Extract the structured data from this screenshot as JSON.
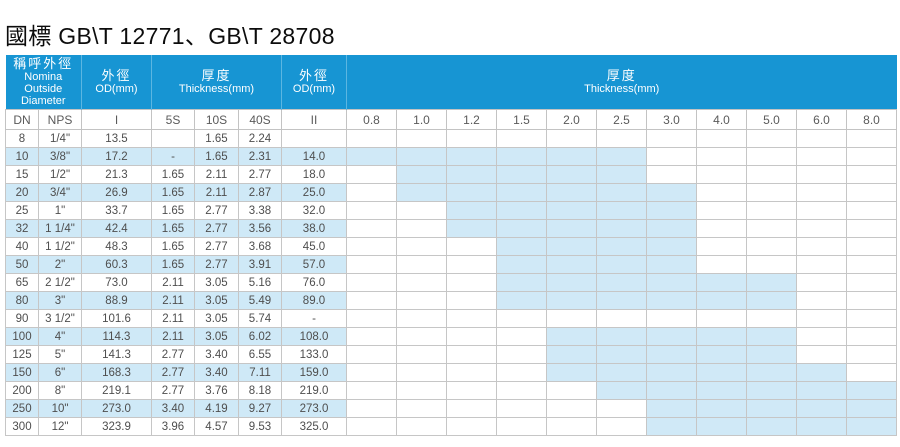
{
  "title": "國標 GB\\T 12771、GB\\T 28708",
  "colors": {
    "header_blue": "#1795d3",
    "header_divider": "#5cb6e1",
    "stripe_blue": "#cfe9f7",
    "available_blue": "#d0e9f7"
  },
  "table": {
    "groups": [
      {
        "zh": "稱呼外徑",
        "en": "Nomina",
        "en2": "Outside Diameter"
      },
      {
        "zh": "外徑",
        "en": "OD(mm)"
      },
      {
        "zh": "厚度",
        "en": "Thickness(mm)"
      },
      {
        "zh": "外徑",
        "en": "OD(mm)"
      },
      {
        "zh": "厚度",
        "en": "Thickness(mm)"
      }
    ],
    "subheaders": [
      "DN",
      "NPS",
      "I",
      "5S",
      "10S",
      "40S",
      "II"
    ],
    "thickness_columns": [
      "0.8",
      "1.0",
      "1.2",
      "1.5",
      "2.0",
      "2.5",
      "3.0",
      "4.0",
      "5.0",
      "6.0",
      "8.0"
    ],
    "rows": [
      {
        "dn": "8",
        "nps": "1/4\"",
        "od1": "13.5",
        "s5s": "",
        "s10s": "1.65",
        "s40s": "2.24",
        "od2": "",
        "available": null
      },
      {
        "dn": "10",
        "nps": "3/8\"",
        "od1": "17.2",
        "s5s": "-",
        "s10s": "1.65",
        "s40s": "2.31",
        "od2": "14.0",
        "available": [
          "0.8",
          "2.5"
        ]
      },
      {
        "dn": "15",
        "nps": "1/2\"",
        "od1": "21.3",
        "s5s": "1.65",
        "s10s": "2.11",
        "s40s": "2.77",
        "od2": "18.0",
        "available": [
          "1.0",
          "2.5"
        ]
      },
      {
        "dn": "20",
        "nps": "3/4\"",
        "od1": "26.9",
        "s5s": "1.65",
        "s10s": "2.11",
        "s40s": "2.87",
        "od2": "25.0",
        "available": [
          "1.0",
          "3.0"
        ]
      },
      {
        "dn": "25",
        "nps": "1\"",
        "od1": "33.7",
        "s5s": "1.65",
        "s10s": "2.77",
        "s40s": "3.38",
        "od2": "32.0",
        "available": [
          "1.2",
          "3.0"
        ]
      },
      {
        "dn": "32",
        "nps": "1 1/4\"",
        "od1": "42.4",
        "s5s": "1.65",
        "s10s": "2.77",
        "s40s": "3.56",
        "od2": "38.0",
        "available": [
          "1.2",
          "3.0"
        ]
      },
      {
        "dn": "40",
        "nps": "1 1/2\"",
        "od1": "48.3",
        "s5s": "1.65",
        "s10s": "2.77",
        "s40s": "3.68",
        "od2": "45.0",
        "available": [
          "1.5",
          "3.0"
        ]
      },
      {
        "dn": "50",
        "nps": "2\"",
        "od1": "60.3",
        "s5s": "1.65",
        "s10s": "2.77",
        "s40s": "3.91",
        "od2": "57.0",
        "available": [
          "1.5",
          "3.0"
        ]
      },
      {
        "dn": "65",
        "nps": "2 1/2\"",
        "od1": "73.0",
        "s5s": "2.11",
        "s10s": "3.05",
        "s40s": "5.16",
        "od2": "76.0",
        "available": [
          "1.5",
          "5.0"
        ]
      },
      {
        "dn": "80",
        "nps": "3\"",
        "od1": "88.9",
        "s5s": "2.11",
        "s10s": "3.05",
        "s40s": "5.49",
        "od2": "89.0",
        "available": [
          "1.5",
          "5.0"
        ]
      },
      {
        "dn": "90",
        "nps": "3 1/2\"",
        "od1": "101.6",
        "s5s": "2.11",
        "s10s": "3.05",
        "s40s": "5.74",
        "od2": "-",
        "available": null
      },
      {
        "dn": "100",
        "nps": "4\"",
        "od1": "114.3",
        "s5s": "2.11",
        "s10s": "3.05",
        "s40s": "6.02",
        "od2": "108.0",
        "available": [
          "2.0",
          "5.0"
        ]
      },
      {
        "dn": "125",
        "nps": "5\"",
        "od1": "141.3",
        "s5s": "2.77",
        "s10s": "3.40",
        "s40s": "6.55",
        "od2": "133.0",
        "available": [
          "2.0",
          "5.0"
        ]
      },
      {
        "dn": "150",
        "nps": "6\"",
        "od1": "168.3",
        "s5s": "2.77",
        "s10s": "3.40",
        "s40s": "7.11",
        "od2": "159.0",
        "available": [
          "2.0",
          "6.0"
        ]
      },
      {
        "dn": "200",
        "nps": "8\"",
        "od1": "219.1",
        "s5s": "2.77",
        "s10s": "3.76",
        "s40s": "8.18",
        "od2": "219.0",
        "available": [
          "2.5",
          "8.0"
        ]
      },
      {
        "dn": "250",
        "nps": "10\"",
        "od1": "273.0",
        "s5s": "3.40",
        "s10s": "4.19",
        "s40s": "9.27",
        "od2": "273.0",
        "available": [
          "3.0",
          "8.0"
        ]
      },
      {
        "dn": "300",
        "nps": "12\"",
        "od1": "323.9",
        "s5s": "3.96",
        "s10s": "4.57",
        "s40s": "9.53",
        "od2": "325.0",
        "available": [
          "3.0",
          "8.0"
        ]
      }
    ]
  }
}
